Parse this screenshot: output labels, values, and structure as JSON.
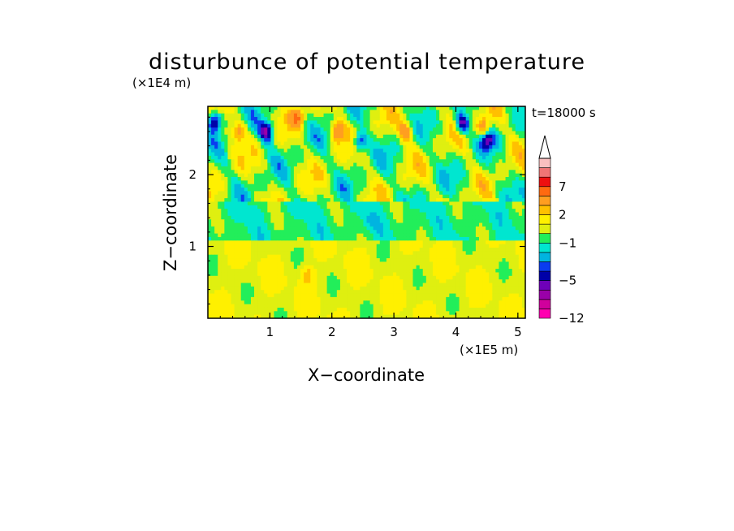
{
  "chart_data": {
    "type": "heatmap",
    "title": "disturbunce of potential temperature",
    "time_label": "t=18000 s",
    "xlabel": "X−coordinate",
    "ylabel": "Z−coordinate",
    "x_unit": "(×1E5 m)",
    "y_unit": "(×1E4 m)",
    "xlim": [
      0,
      5.12
    ],
    "ylim": [
      0,
      2.95
    ],
    "x_ticks": [
      "1",
      "2",
      "3",
      "4",
      "5"
    ],
    "x_tick_values": [
      1,
      2,
      3,
      4,
      5
    ],
    "y_ticks": [
      "1",
      "2"
    ],
    "y_tick_values": [
      1,
      2
    ],
    "colorbar": {
      "labels": [
        "7",
        "2",
        "−1",
        "−5",
        "−12"
      ],
      "label_values": [
        7,
        2,
        -1,
        -5,
        -12
      ],
      "levels": [
        -12,
        -10,
        -8,
        -6,
        -5,
        -4,
        -3,
        -2,
        -1,
        0,
        1,
        2,
        3,
        5,
        7,
        9,
        11
      ],
      "colors": [
        "#ff00b0",
        "#d0009c",
        "#9a00a8",
        "#6e00b8",
        "#0000a8",
        "#0a3cf0",
        "#00b4e0",
        "#00e6d0",
        "#22ee5a",
        "#dfef10",
        "#fff000",
        "#ffc000",
        "#ff9e20",
        "#ff6a10",
        "#ee1010",
        "#f07575",
        "#fac0c0"
      ],
      "extend": "max"
    },
    "features": [
      {
        "x": 0.12,
        "z": 2.75,
        "value": -6
      },
      {
        "x": 0.5,
        "z": 2.6,
        "value": 4
      },
      {
        "x": 0.95,
        "z": 2.6,
        "value": -6
      },
      {
        "x": 1.45,
        "z": 2.8,
        "value": 5
      },
      {
        "x": 2.1,
        "z": 2.6,
        "value": 5
      },
      {
        "x": 2.45,
        "z": 2.45,
        "value": -5
      },
      {
        "x": 3.2,
        "z": 2.6,
        "value": 4
      },
      {
        "x": 4.1,
        "z": 2.7,
        "value": -6
      },
      {
        "x": 4.5,
        "z": 2.5,
        "value": -5
      },
      {
        "x": 4.45,
        "z": 2.65,
        "value": 5
      },
      {
        "x": 2.6,
        "z": 1.35,
        "value": -1
      },
      {
        "x": 1.6,
        "z": 0.6,
        "value": 2
      }
    ]
  }
}
